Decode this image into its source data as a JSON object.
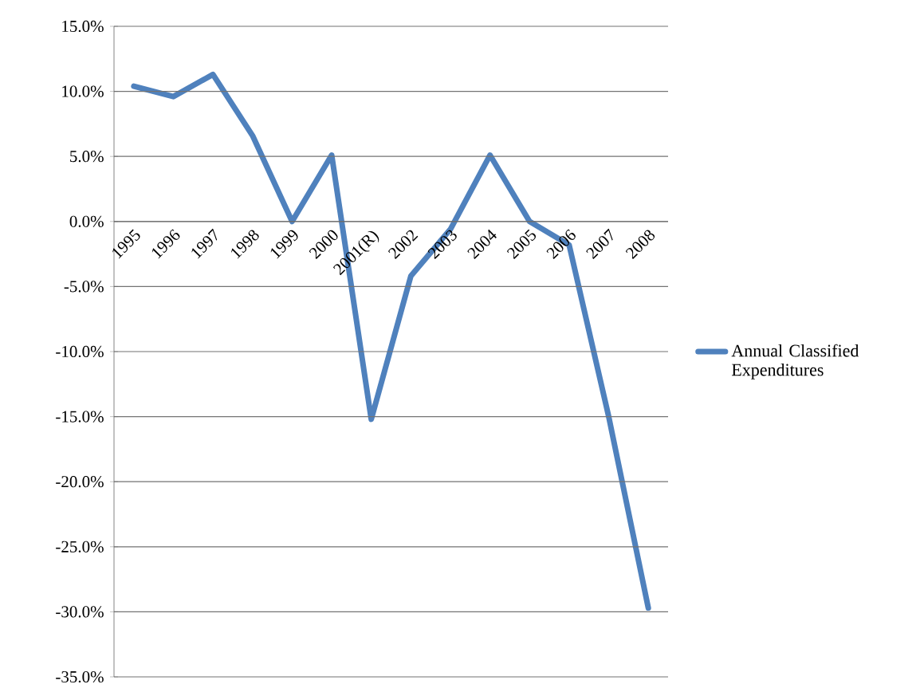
{
  "chart_data": {
    "type": "line",
    "categories": [
      "1995",
      "1996",
      "1997",
      "1998",
      "1999",
      "2000",
      "2001(R)",
      "2002",
      "2003",
      "2004",
      "2005",
      "2006",
      "2007",
      "2008"
    ],
    "series": [
      {
        "name": "Annual Classified Expenditures",
        "color": "#4f81bd",
        "values": [
          10.4,
          9.6,
          11.3,
          6.6,
          0.0,
          5.1,
          -15.2,
          -4.2,
          -0.6,
          5.1,
          0.0,
          -1.8,
          -15.0,
          -29.7
        ]
      }
    ],
    "ylim": [
      -35,
      15
    ],
    "yticks": [
      {
        "value": -35,
        "label": "-35.0%"
      },
      {
        "value": -30,
        "label": "-30.0%"
      },
      {
        "value": -25,
        "label": "-25.0%"
      },
      {
        "value": -20,
        "label": "-20.0%"
      },
      {
        "value": -15,
        "label": "-15.0%"
      },
      {
        "value": -10,
        "label": "-10.0%"
      },
      {
        "value": -5,
        "label": "-5.0%"
      },
      {
        "value": 0,
        "label": "0.0%"
      },
      {
        "value": 5,
        "label": "5.0%"
      },
      {
        "value": 10,
        "label": "10.0%"
      },
      {
        "value": 15,
        "label": "15.0%"
      }
    ],
    "grid": "y",
    "legend": "right",
    "marker": "none",
    "line_style": "solid"
  }
}
